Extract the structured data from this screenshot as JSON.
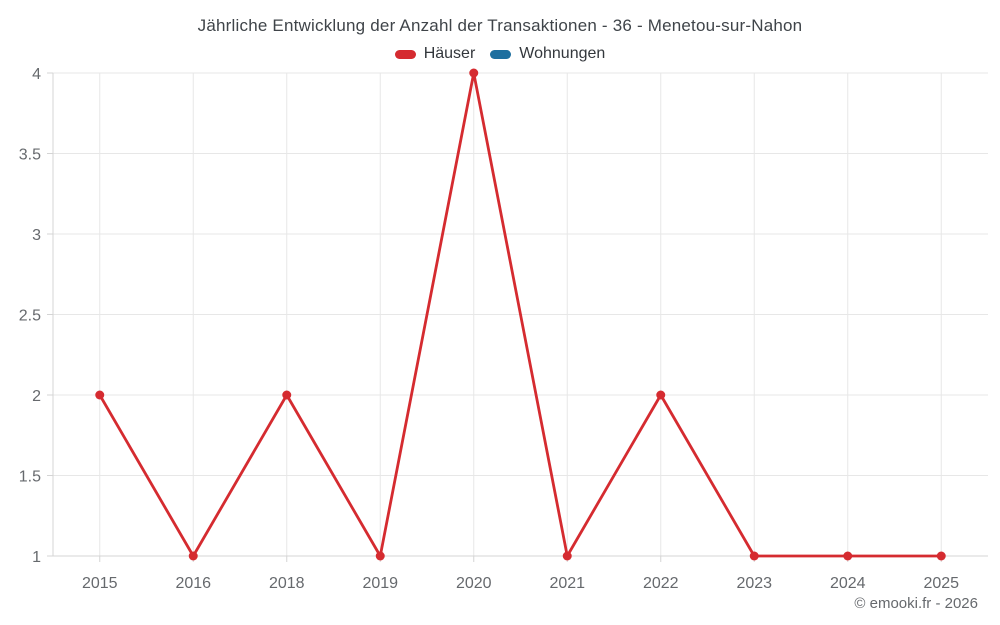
{
  "chart_data": {
    "type": "line",
    "title": "Jährliche Entwicklung der Anzahl der Transaktionen - 36 - Menetou-sur-Nahon",
    "categories": [
      "2015",
      "2016",
      "2018",
      "2019",
      "2020",
      "2021",
      "2022",
      "2023",
      "2024",
      "2025"
    ],
    "series": [
      {
        "name": "Häuser",
        "color": "#d52b30",
        "values": [
          2,
          1,
          2,
          1,
          4,
          1,
          2,
          1,
          1,
          1
        ]
      },
      {
        "name": "Wohnungen",
        "color": "#1e6f9f",
        "values": []
      }
    ],
    "ylim": [
      1,
      4
    ],
    "y_tick_step": 0.5,
    "y_tick_labels": [
      "1",
      "1.5",
      "2",
      "2.5",
      "3",
      "3.5",
      "4"
    ],
    "grid": true,
    "legend_position": "top",
    "colors": {
      "grid_line": "#e7e7e7",
      "axis_line": "#d4d4d4",
      "tick_label": "#66696d"
    }
  },
  "footer": {
    "copyright": "© emooki.fr - 2026"
  }
}
